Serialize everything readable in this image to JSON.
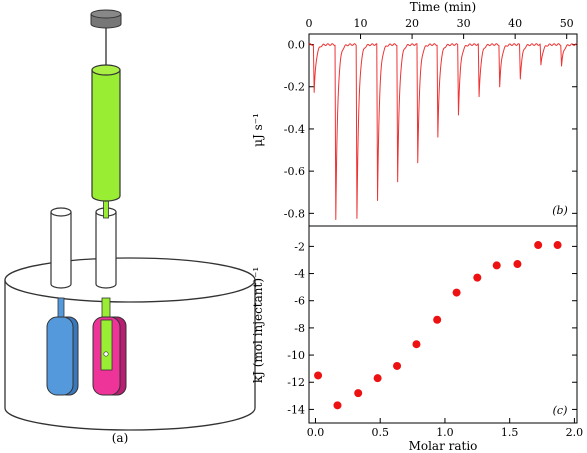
{
  "panel_a": {
    "label": "(a)",
    "colors": {
      "syringe_barrel": "#99ee33",
      "syringe_cap": "#777777",
      "reference_cell": "#5599dd",
      "sample_cell": "#ee3399",
      "jacket_stroke": "#333333"
    }
  },
  "chart_data": [
    {
      "type": "line",
      "panel_label": "(b)",
      "xlabel": "Time (min)",
      "ylabel": "μJ s⁻¹",
      "xlim": [
        0,
        52
      ],
      "ylim": [
        -0.86,
        0.05
      ],
      "x_axis_position": "top",
      "xticks": [
        0,
        10,
        20,
        30,
        40,
        50
      ],
      "yticks": [
        0.0,
        -0.2,
        -0.4,
        -0.6,
        -0.8
      ],
      "ytick_labels": [
        "0.0",
        "-0.2",
        "-0.4",
        "-0.6",
        "-0.8"
      ],
      "baseline": 0.0,
      "line_color": "#ee3333",
      "peaks": [
        {
          "t": 1.0,
          "y": -0.23
        },
        {
          "t": 5.2,
          "y": -0.83
        },
        {
          "t": 9.3,
          "y": -0.82
        },
        {
          "t": 13.3,
          "y": -0.74
        },
        {
          "t": 17.2,
          "y": -0.65
        },
        {
          "t": 21.1,
          "y": -0.56
        },
        {
          "t": 25.0,
          "y": -0.44
        },
        {
          "t": 29.0,
          "y": -0.33
        },
        {
          "t": 33.0,
          "y": -0.25
        },
        {
          "t": 37.0,
          "y": -0.2
        },
        {
          "t": 41.0,
          "y": -0.16
        },
        {
          "t": 45.0,
          "y": -0.1
        },
        {
          "t": 49.0,
          "y": -0.1
        }
      ]
    },
    {
      "type": "scatter",
      "panel_label": "(c)",
      "xlabel": "Molar ratio",
      "ylabel": "kJ (mol injectant)⁻¹",
      "xlim": [
        -0.05,
        2.02
      ],
      "ylim": [
        -15,
        -0.5
      ],
      "xticks": [
        0.0,
        0.5,
        1.0,
        1.5,
        2.0
      ],
      "xtick_labels": [
        "0.0",
        "0.5",
        "1.0",
        "1.5",
        "2.0"
      ],
      "yticks": [
        -2,
        -4,
        -6,
        -8,
        -10,
        -12,
        -14
      ],
      "marker_color": "#ee1111",
      "points": [
        {
          "x": 0.02,
          "y": -11.5
        },
        {
          "x": 0.17,
          "y": -13.7
        },
        {
          "x": 0.33,
          "y": -12.8
        },
        {
          "x": 0.48,
          "y": -11.7
        },
        {
          "x": 0.63,
          "y": -10.8
        },
        {
          "x": 0.78,
          "y": -9.2
        },
        {
          "x": 0.94,
          "y": -7.4
        },
        {
          "x": 1.09,
          "y": -5.4
        },
        {
          "x": 1.25,
          "y": -4.3
        },
        {
          "x": 1.4,
          "y": -3.4
        },
        {
          "x": 1.56,
          "y": -3.3
        },
        {
          "x": 1.72,
          "y": -1.9
        },
        {
          "x": 1.87,
          "y": -1.9
        }
      ]
    }
  ]
}
